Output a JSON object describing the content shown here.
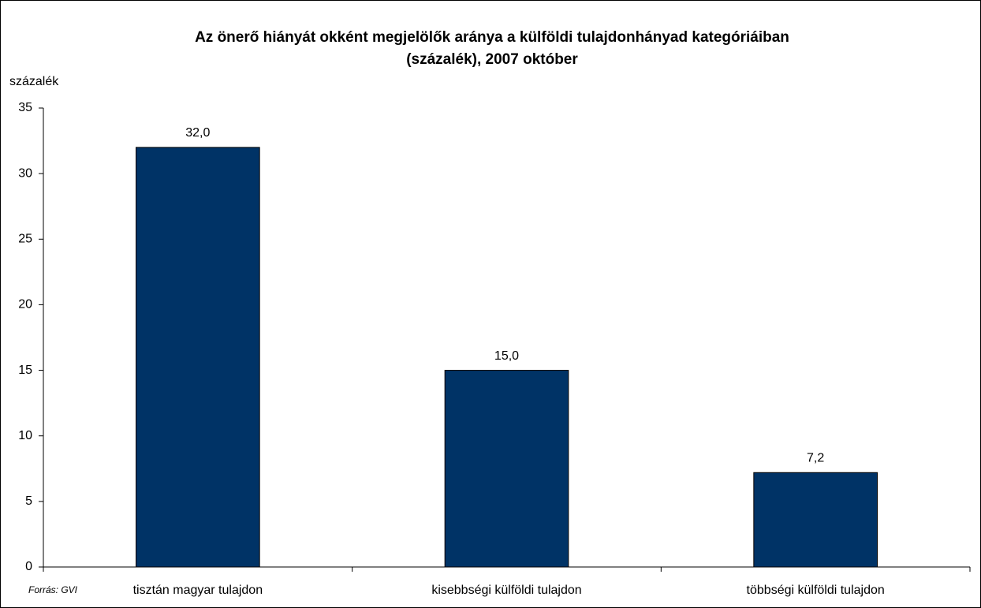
{
  "chart_data": {
    "type": "bar",
    "title": [
      "Az önerő hiányát okként megjelölők aránya a külföldi tulajdonhányad kategóriáiban",
      "(százalék), 2007 október"
    ],
    "y_label": "százalék",
    "source": "Forrás: GVI",
    "categories": [
      "tisztán magyar tulajdon",
      "kisebbségi külföldi tulajdon",
      "többségi külföldi tulajdon"
    ],
    "values": [
      32.0,
      15.0,
      7.2
    ],
    "value_labels": [
      "32,0",
      "15,0",
      "7,2"
    ],
    "color": "#003366",
    "ylim": [
      0,
      35
    ],
    "yticks": [
      0,
      5,
      10,
      15,
      20,
      25,
      30,
      35
    ],
    "grid": false
  }
}
